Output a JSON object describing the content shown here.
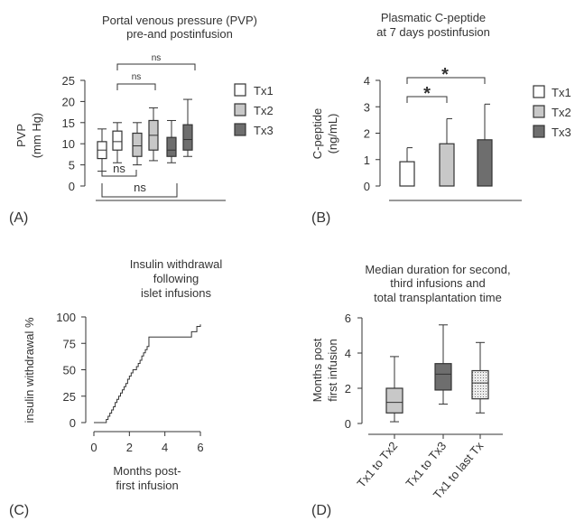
{
  "colors": {
    "tx1": "#ffffff",
    "tx2": "#c8c8c8",
    "tx3": "#6e6e6e",
    "hatch": "#e6e6e6",
    "line": "#333333"
  },
  "chart_data": [
    {
      "panel": "(A)",
      "type": "box",
      "title": [
        "Portal venous pressure (PVP)",
        "pre-and postinfusion"
      ],
      "ylabel": [
        "PVP",
        "(mm Hg)"
      ],
      "ylim": [
        0,
        25
      ],
      "yticks": [
        "0",
        "5",
        "10",
        "15",
        "20",
        "25"
      ],
      "legend": [
        "Tx1",
        "Tx2",
        "Tx3"
      ],
      "annotations": [
        "ns",
        "ns",
        "ns",
        "ns"
      ],
      "series": [
        {
          "name": "Tx1",
          "boxes": [
            {
              "min": 3.5,
              "q1": 6.5,
              "median": 8.5,
              "q3": 10.5,
              "max": 13.5
            },
            {
              "min": 5.5,
              "q1": 8.5,
              "median": 10.5,
              "q3": 13.0,
              "max": 15.0
            }
          ]
        },
        {
          "name": "Tx2",
          "boxes": [
            {
              "min": 5.0,
              "q1": 7.0,
              "median": 9.5,
              "q3": 12.5,
              "max": 15.0
            },
            {
              "min": 6.0,
              "q1": 8.5,
              "median": 12.0,
              "q3": 15.5,
              "max": 18.5
            }
          ]
        },
        {
          "name": "Tx3",
          "boxes": [
            {
              "min": 5.5,
              "q1": 7.0,
              "median": 8.5,
              "q3": 11.5,
              "max": 15.5
            },
            {
              "min": 7.0,
              "q1": 8.5,
              "median": 11.0,
              "q3": 14.5,
              "max": 20.5
            }
          ]
        }
      ]
    },
    {
      "panel": "(B)",
      "type": "bar",
      "title": [
        "Plasmatic C-peptide",
        "at 7 days postinfusion"
      ],
      "ylabel": [
        "C-peptide",
        "(ng/mL)"
      ],
      "ylim": [
        0,
        4
      ],
      "yticks": [
        "0",
        "1",
        "2",
        "3",
        "4"
      ],
      "categories": [
        "Tx1",
        "Tx2",
        "Tx3"
      ],
      "values": [
        0.92,
        1.6,
        1.75
      ],
      "error_upper": [
        1.45,
        2.55,
        3.1
      ],
      "annotations": [
        "*",
        "*"
      ],
      "legend": [
        "Tx1",
        "Tx2",
        "Tx3"
      ]
    },
    {
      "panel": "(C)",
      "type": "line",
      "title": [
        "Insulin withdrawal",
        "following",
        "islet infusions"
      ],
      "xlabel": [
        "Months post-",
        "first infusion"
      ],
      "ylabel": "insulin withdrawal %",
      "xlim": [
        0,
        6
      ],
      "ylim": [
        0,
        100
      ],
      "xticks": [
        "0",
        "2",
        "4",
        "6"
      ],
      "yticks": [
        "0",
        "25",
        "50",
        "75",
        "100"
      ],
      "x": [
        0,
        0.6,
        0.7,
        0.8,
        0.9,
        1.0,
        1.1,
        1.2,
        1.3,
        1.4,
        1.5,
        1.6,
        1.7,
        1.8,
        1.9,
        2.0,
        2.1,
        2.2,
        2.3,
        2.4,
        2.5,
        2.6,
        2.7,
        2.8,
        2.9,
        3.0,
        3.1,
        4.5,
        5.5,
        5.8,
        6.0
      ],
      "y": [
        0,
        0,
        3,
        6,
        9,
        12,
        15,
        19,
        22,
        25,
        28,
        31,
        34,
        37,
        41,
        44,
        47,
        50,
        50,
        53,
        56,
        59,
        63,
        66,
        69,
        72,
        81,
        81,
        86,
        91,
        93
      ]
    },
    {
      "panel": "(D)",
      "type": "box",
      "title": [
        "Median duration for second,",
        "third infusions and",
        "total transplantation time"
      ],
      "ylabel": [
        "Months post",
        "first infusion"
      ],
      "ylim": [
        0,
        6
      ],
      "yticks": [
        "0",
        "2",
        "4",
        "6"
      ],
      "categories": [
        "Tx1 to Tx2",
        "Tx1 to Tx3",
        "Tx1 to last Tx"
      ],
      "boxes": [
        {
          "min": 0.1,
          "q1": 0.6,
          "median": 1.2,
          "q3": 2.0,
          "max": 3.8
        },
        {
          "min": 1.1,
          "q1": 1.9,
          "median": 2.8,
          "q3": 3.4,
          "max": 5.6
        },
        {
          "min": 0.6,
          "q1": 1.4,
          "median": 2.3,
          "q3": 3.0,
          "max": 4.6
        }
      ]
    }
  ]
}
